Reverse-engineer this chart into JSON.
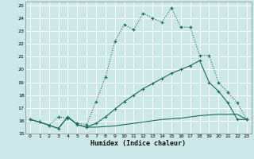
{
  "xlabel": "Humidex (Indice chaleur)",
  "bg_color": "#cce8e8",
  "grid_color": "#b0d0d0",
  "line_color": "#1a6b5a",
  "xlim": [
    -0.5,
    23.5
  ],
  "ylim": [
    15,
    25.3
  ],
  "xticks": [
    0,
    1,
    2,
    3,
    4,
    5,
    6,
    7,
    8,
    9,
    10,
    11,
    12,
    13,
    14,
    15,
    16,
    17,
    18,
    19,
    20,
    21,
    22,
    23
  ],
  "yticks": [
    15,
    16,
    17,
    18,
    19,
    20,
    21,
    22,
    23,
    24,
    25
  ],
  "curve1_x": [
    0,
    1,
    2,
    3,
    4,
    5,
    6,
    7,
    8,
    9,
    10,
    11,
    12,
    13,
    14,
    15,
    16,
    17,
    18,
    19,
    20,
    21,
    22,
    23
  ],
  "curve1_y": [
    16.1,
    15.9,
    15.65,
    16.3,
    16.2,
    15.8,
    15.7,
    17.5,
    19.4,
    22.2,
    23.5,
    23.1,
    24.4,
    24.0,
    23.7,
    24.8,
    23.3,
    23.3,
    21.1,
    21.1,
    19.0,
    18.2,
    17.4,
    16.1
  ],
  "curve2_x": [
    0,
    1,
    2,
    3,
    4,
    5,
    6,
    7,
    8,
    9,
    10,
    11,
    12,
    13,
    14,
    15,
    16,
    17,
    18,
    19,
    20,
    21,
    22,
    23
  ],
  "curve2_y": [
    16.1,
    15.9,
    15.65,
    15.4,
    16.3,
    15.7,
    15.5,
    15.5,
    15.55,
    15.6,
    15.7,
    15.8,
    15.9,
    16.0,
    16.1,
    16.15,
    16.2,
    16.3,
    16.4,
    16.45,
    16.5,
    16.5,
    16.5,
    16.1
  ],
  "curve3_x": [
    0,
    1,
    2,
    3,
    4,
    5,
    6,
    7,
    8,
    9,
    10,
    11,
    12,
    13,
    14,
    15,
    16,
    17,
    18,
    19,
    20,
    21,
    22,
    23
  ],
  "curve3_y": [
    16.1,
    15.9,
    15.65,
    15.4,
    16.3,
    15.7,
    15.5,
    15.8,
    16.3,
    16.9,
    17.5,
    18.0,
    18.5,
    18.9,
    19.3,
    19.7,
    20.0,
    20.3,
    20.7,
    19.0,
    18.3,
    17.4,
    16.1,
    16.1
  ]
}
